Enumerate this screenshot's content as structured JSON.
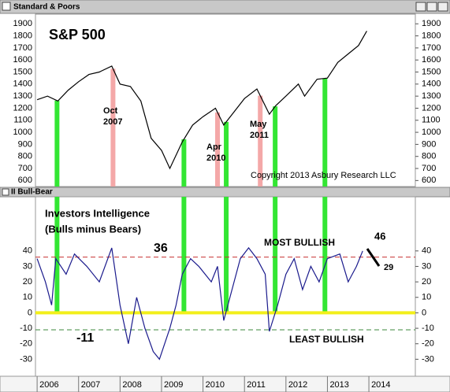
{
  "chart_data": [
    {
      "type": "line",
      "window_title": "Standard & Poors",
      "title": "S&P 500",
      "annotations": [
        "Oct",
        "2007",
        "Apr",
        "2010",
        "May",
        "2011",
        "Copyright 2013 Asbury Research LLC"
      ],
      "x": [
        2006.0,
        2006.25,
        2006.5,
        2006.75,
        2007.0,
        2007.25,
        2007.5,
        2007.8,
        2008.0,
        2008.25,
        2008.5,
        2008.75,
        2009.0,
        2009.2,
        2009.5,
        2009.75,
        2010.0,
        2010.3,
        2010.5,
        2010.75,
        2011.0,
        2011.3,
        2011.6,
        2011.75,
        2012.0,
        2012.3,
        2012.45,
        2012.75,
        2013.0,
        2013.25,
        2013.5,
        2013.75,
        2013.95
      ],
      "series": [
        {
          "name": "S&P 500",
          "color": "#000000",
          "values": [
            1270,
            1300,
            1260,
            1350,
            1420,
            1480,
            1500,
            1550,
            1400,
            1380,
            1260,
            950,
            850,
            700,
            920,
            1060,
            1130,
            1200,
            1060,
            1170,
            1280,
            1360,
            1150,
            1220,
            1300,
            1400,
            1300,
            1440,
            1450,
            1580,
            1650,
            1720,
            1840
          ]
        }
      ],
      "vlines": [
        {
          "x": 2006.48,
          "color": "#33e633"
        },
        {
          "x": 2007.83,
          "color": "#f4a8a8"
        },
        {
          "x": 2009.54,
          "color": "#33e633"
        },
        {
          "x": 2010.35,
          "color": "#f4a8a8"
        },
        {
          "x": 2010.56,
          "color": "#33e633"
        },
        {
          "x": 2011.38,
          "color": "#f4a8a8"
        },
        {
          "x": 2011.74,
          "color": "#33e633"
        },
        {
          "x": 2012.94,
          "color": "#33e633"
        }
      ],
      "xlim": [
        2005.96,
        2015.12
      ],
      "ylim": [
        550,
        1980
      ],
      "yticks": [
        600,
        700,
        800,
        900,
        1000,
        1100,
        1200,
        1300,
        1400,
        1500,
        1600,
        1700,
        1800,
        1900
      ]
    },
    {
      "type": "line",
      "window_title": "II Bull-Bear",
      "annotations": [
        "Investors Intelligence",
        "(Bulls minus Bears)",
        "MOST BULLISH",
        "LEAST BULLISH",
        "46",
        "29"
      ],
      "x": [
        2006.0,
        2006.2,
        2006.35,
        2006.45,
        2006.7,
        2006.9,
        2007.2,
        2007.5,
        2007.8,
        2008.0,
        2008.2,
        2008.4,
        2008.6,
        2008.8,
        2008.95,
        2009.2,
        2009.35,
        2009.5,
        2009.7,
        2009.9,
        2010.2,
        2010.35,
        2010.5,
        2010.7,
        2010.9,
        2011.1,
        2011.3,
        2011.5,
        2011.6,
        2011.8,
        2012.0,
        2012.2,
        2012.4,
        2012.6,
        2012.8,
        2013.0,
        2013.3,
        2013.5,
        2013.7,
        2013.85
      ],
      "series": [
        {
          "name": "Investors Intelligence",
          "color": "#1a1a8c",
          "values": [
            35,
            20,
            5,
            35,
            25,
            38,
            30,
            20,
            42,
            5,
            -20,
            10,
            -10,
            -25,
            -30,
            -10,
            5,
            25,
            35,
            30,
            20,
            30,
            -5,
            15,
            35,
            42,
            35,
            25,
            -12,
            5,
            25,
            35,
            15,
            30,
            20,
            35,
            38,
            20,
            30,
            40
          ]
        }
      ],
      "vlines": [
        {
          "x": 2006.48,
          "color": "#33e633"
        },
        {
          "x": 2009.54,
          "color": "#33e633"
        },
        {
          "x": 2010.56,
          "color": "#33e633"
        },
        {
          "x": 2011.74,
          "color": "#33e633"
        },
        {
          "x": 2012.94,
          "color": "#33e633"
        }
      ],
      "hlines": [
        {
          "y": 36,
          "color": "#c83232",
          "style": "dashed"
        },
        {
          "y": 0,
          "color": "#f2ef1a",
          "style": "solid"
        },
        {
          "y": -11,
          "color": "#3c8a3c",
          "style": "dashed"
        }
      ],
      "xlim": [
        2005.96,
        2015.12
      ],
      "xticks": [
        2006,
        2007,
        2008,
        2009,
        2010,
        2011,
        2012,
        2013,
        2014
      ],
      "ylim": [
        -41,
        75
      ],
      "yticks": [
        -30,
        -20,
        -10,
        0,
        10,
        20,
        30,
        40
      ]
    }
  ]
}
